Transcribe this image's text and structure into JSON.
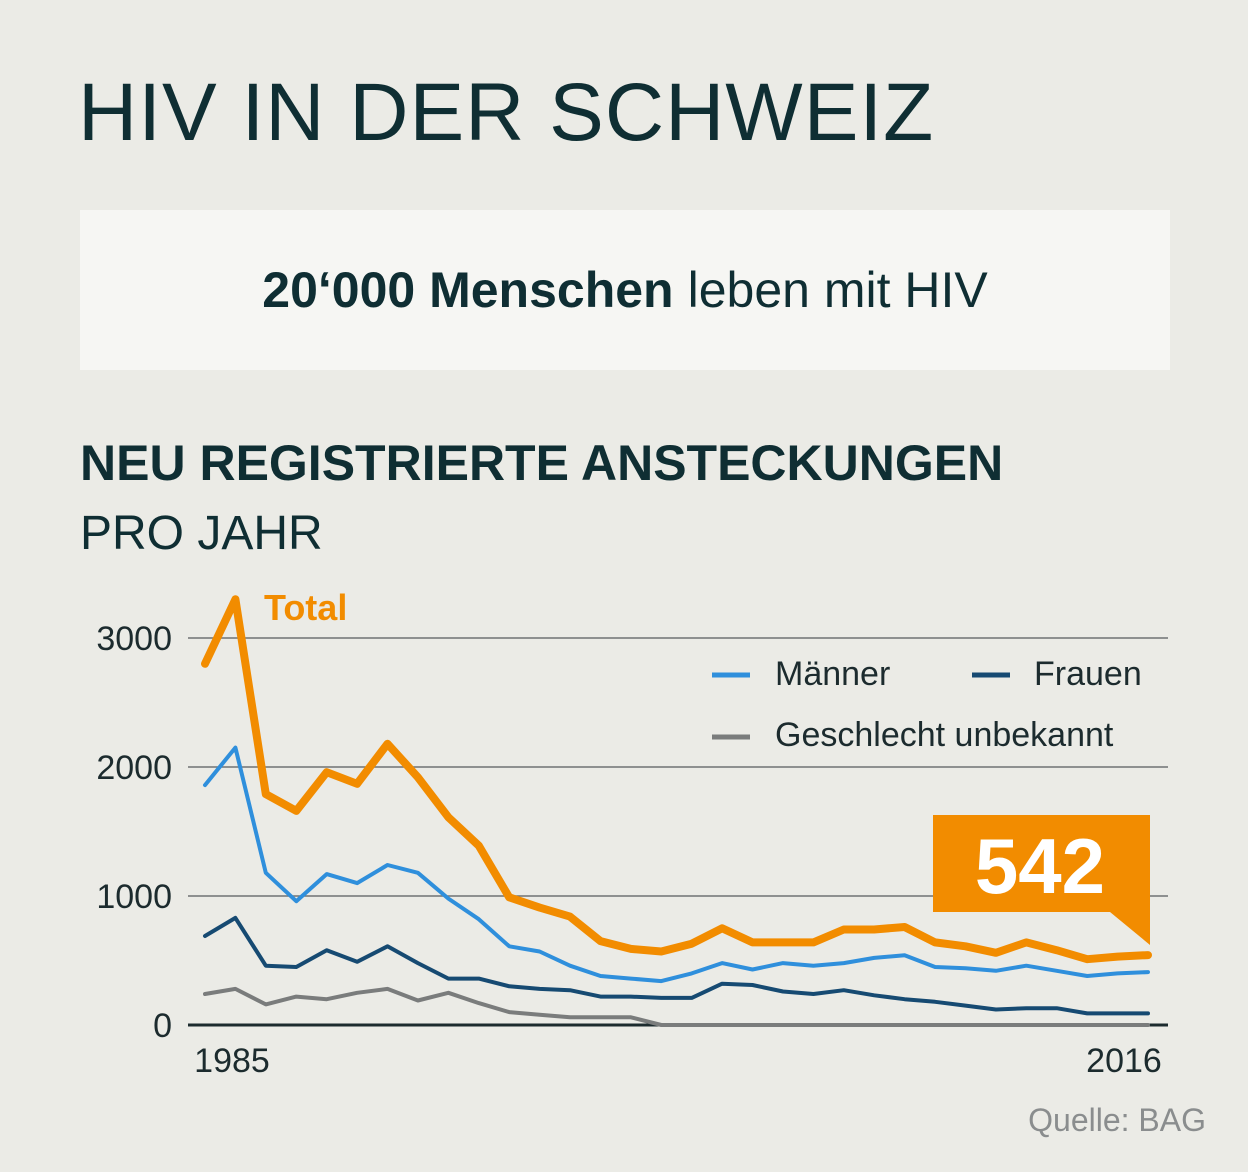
{
  "header": {
    "title": "HIV IN DER SCHWEIZ",
    "stat_strong": "20‘000 Menschen",
    "stat_rest": "leben mit HIV"
  },
  "subtitle": "NEU REGISTRIERTE ANSTECKUNGEN",
  "subtitle2": "PRO JAHR",
  "source": "Quelle: BAG",
  "chart_data": {
    "type": "line",
    "x": [
      1985,
      1986,
      1987,
      1988,
      1989,
      1990,
      1991,
      1992,
      1993,
      1994,
      1995,
      1996,
      1997,
      1998,
      1999,
      2000,
      2001,
      2002,
      2003,
      2004,
      2005,
      2006,
      2007,
      2008,
      2009,
      2010,
      2011,
      2012,
      2013,
      2014,
      2015,
      2016
    ],
    "x_tick_labels": [
      "1985",
      "2016"
    ],
    "y_ticks": [
      0,
      1000,
      2000,
      3000
    ],
    "ylim": [
      0,
      3200
    ],
    "grid": true,
    "legend_position": "top-right",
    "series": [
      {
        "name": "Total",
        "color": "#f28c00",
        "values": [
          2800,
          3300,
          1790,
          1660,
          1960,
          1870,
          2180,
          1920,
          1610,
          1390,
          990,
          910,
          840,
          650,
          590,
          570,
          630,
          750,
          640,
          640,
          640,
          740,
          740,
          760,
          640,
          610,
          560,
          640,
          580,
          510,
          530,
          542
        ]
      },
      {
        "name": "Männer",
        "color": "#2f8fdc",
        "values": [
          1860,
          2150,
          1180,
          960,
          1170,
          1100,
          1240,
          1180,
          980,
          820,
          610,
          570,
          460,
          380,
          360,
          340,
          400,
          480,
          430,
          480,
          460,
          480,
          520,
          540,
          450,
          440,
          420,
          460,
          420,
          380,
          400,
          410
        ]
      },
      {
        "name": "Frauen",
        "color": "#164a72",
        "values": [
          690,
          830,
          460,
          450,
          580,
          490,
          610,
          480,
          360,
          360,
          300,
          280,
          270,
          220,
          220,
          210,
          210,
          320,
          310,
          260,
          240,
          270,
          230,
          200,
          180,
          150,
          120,
          130,
          130,
          90,
          90,
          90
        ]
      },
      {
        "name": "Geschlecht unbekannt",
        "color": "#7a7c7c",
        "values": [
          240,
          280,
          160,
          220,
          200,
          250,
          280,
          190,
          250,
          170,
          100,
          80,
          60,
          60,
          60,
          0,
          0,
          0,
          0,
          0,
          0,
          0,
          0,
          0,
          0,
          0,
          0,
          0,
          0,
          0,
          0,
          0
        ]
      }
    ],
    "highlight_value": "542"
  }
}
